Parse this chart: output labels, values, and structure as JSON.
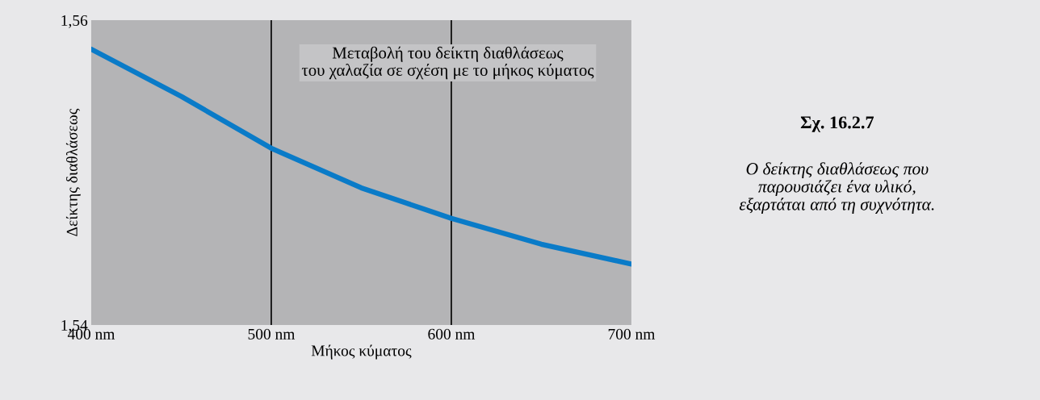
{
  "chart_data": {
    "type": "line",
    "title": "Μεταβολή του δείκτη διαθλάσεως\nτου χαλαζία σε σχέση με το μήκος κύματος",
    "xlabel": "Μήκος κύματος",
    "ylabel": "Δείκτης διαθλάσεως",
    "x": [
      400,
      450,
      500,
      550,
      600,
      650,
      700
    ],
    "series": [
      {
        "color": "#0a7bc8",
        "values": [
          1.5581,
          1.555,
          1.5516,
          1.549,
          1.547,
          1.5453,
          1.544
        ]
      }
    ],
    "xlim": [
      400,
      700
    ],
    "ylim": [
      1.54,
      1.56
    ],
    "xticks": [
      {
        "value": 400,
        "label": "400 nm"
      },
      {
        "value": 500,
        "label": "500 nm"
      },
      {
        "value": 600,
        "label": "600 nm"
      },
      {
        "value": 700,
        "label": "700 nm"
      }
    ],
    "yticks": [
      {
        "value": 1.54,
        "label": "1,54"
      },
      {
        "value": 1.56,
        "label": "1,56"
      }
    ],
    "ref_lines": [
      {
        "axis": "x",
        "value": 500,
        "color": "#000000"
      },
      {
        "axis": "x",
        "value": 600,
        "color": "#000000"
      }
    ],
    "annotations": [
      "Σχ. 16.2.7",
      "Ο δείκτης διαθλάσεως που\nπαρουσιάζει ένα υλικό,\nεξαρτάται από τη συχνότητα."
    ],
    "grid": false,
    "legend": false,
    "marker": "none",
    "line_style": "solid"
  }
}
